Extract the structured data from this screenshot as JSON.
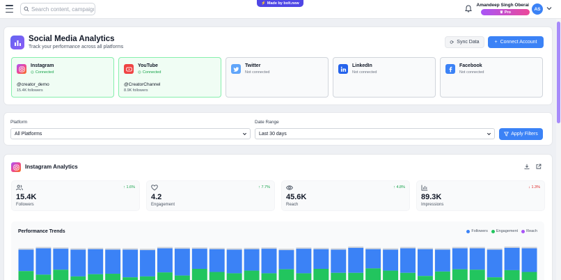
{
  "topbar": {
    "search_placeholder": "Search content, campaign",
    "bolt_badge": "Made by bolt.new",
    "user_name": "Amandeep Singh Oberai",
    "plan": "Pro",
    "avatar_initials": "AS"
  },
  "header": {
    "title": "Social Media Analytics",
    "subtitle": "Track your performance across all platforms",
    "sync_label": "Sync Data",
    "connect_label": "Connect Account"
  },
  "platforms": [
    {
      "name": "Instagram",
      "status": "Connected",
      "handle": "@creator_demo",
      "followers": "15.4K followers",
      "connected": true,
      "color": "#e1306c",
      "icon": "instagram-icon"
    },
    {
      "name": "YouTube",
      "status": "Connected",
      "handle": "@CreatorChannel",
      "followers": "8.9K followers",
      "connected": true,
      "color": "#ef4444",
      "icon": "youtube-icon"
    },
    {
      "name": "Twitter",
      "status": "Not connected",
      "connected": false,
      "color": "#60a5fa",
      "icon": "twitter-icon"
    },
    {
      "name": "LinkedIn",
      "status": "Not connected",
      "connected": false,
      "color": "#2563eb",
      "icon": "linkedin-icon"
    },
    {
      "name": "Facebook",
      "status": "Not connected",
      "connected": false,
      "color": "#3b82f6",
      "icon": "facebook-icon"
    }
  ],
  "filters": {
    "platform_label": "Platform",
    "platform_value": "All Platforms",
    "date_label": "Date Range",
    "date_value": "Last 30 days",
    "apply_label": "Apply Filters"
  },
  "analytics": {
    "title": "Instagram Analytics",
    "stats": [
      {
        "label": "Followers",
        "value": "15.4K",
        "change": "↑ 1.6%",
        "direction": "up",
        "icon": "users-icon"
      },
      {
        "label": "Engagement",
        "value": "4.2",
        "change": "↑ 7.7%",
        "direction": "up",
        "icon": "heart-icon"
      },
      {
        "label": "Reach",
        "value": "45.6K",
        "change": "↑ 4.8%",
        "direction": "up",
        "icon": "eye-icon"
      },
      {
        "label": "Impressions",
        "value": "89.3K",
        "change": "↓ 1.3%",
        "direction": "down",
        "icon": "bar-chart-icon"
      }
    ],
    "trend_title": "Performance Trends"
  },
  "chart_data": {
    "type": "bar",
    "title": "Performance Trends",
    "series": [
      {
        "name": "Followers",
        "color": "#3b82f6"
      },
      {
        "name": "Engagement",
        "color": "#22c55e"
      },
      {
        "name": "Reach",
        "color": "#a855f7"
      }
    ],
    "bar_count": 30,
    "top_levels": [
      0.93,
      0.96,
      0.95,
      0.93,
      0.94,
      0.93,
      0.93,
      0.92,
      0.96,
      0.95,
      0.95,
      0.94,
      0.93,
      0.94,
      0.95,
      0.92,
      0.95,
      0.94,
      0.93,
      0.97,
      0.94,
      0.93,
      0.96,
      0.94,
      0.93,
      0.96,
      0.96,
      0.93,
      0.97,
      0.96
    ],
    "engagement_tops": [
      0.45,
      0.37,
      0.48,
      0.33,
      0.38,
      0.39,
      0.31,
      0.33,
      0.42,
      0.35,
      0.5,
      0.43,
      0.4,
      0.46,
      0.4,
      0.49,
      0.4,
      0.5,
      0.41,
      0.41,
      0.51,
      0.46,
      0.41,
      0.34,
      0.44,
      0.49,
      0.48,
      0.31,
      0.47,
      0.43
    ]
  }
}
